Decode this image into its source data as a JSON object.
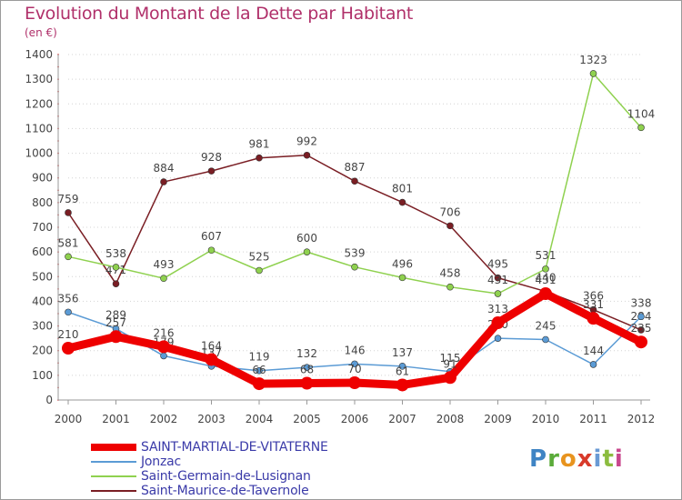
{
  "chart_data": {
    "type": "line",
    "title": "Evolution du Montant de la Dette par Habitant",
    "subtitle": "(en €)",
    "xlabel": "",
    "ylabel": "",
    "ylim": [
      0,
      1400
    ],
    "yticks": [
      0,
      100,
      200,
      300,
      400,
      500,
      600,
      700,
      800,
      900,
      1000,
      1100,
      1200,
      1300,
      1400
    ],
    "categories": [
      "2000",
      "2001",
      "2002",
      "2003",
      "2004",
      "2005",
      "2006",
      "2007",
      "2008",
      "2009",
      "2010",
      "2011",
      "2012"
    ],
    "grid": "horizontal",
    "legend_position": "bottom-left",
    "series": [
      {
        "name": "SAINT-MARTIAL-DE-VITATERNE",
        "color": "#ee0000",
        "bold": true,
        "values": [
          210,
          257,
          216,
          164,
          66,
          68,
          70,
          61,
          91,
          313,
          431,
          331,
          235
        ]
      },
      {
        "name": "Jonzac",
        "color": "#5b9bd5",
        "values": [
          356,
          289,
          179,
          137,
          119,
          132,
          146,
          137,
          115,
          250,
          245,
          144,
          338
        ]
      },
      {
        "name": "Saint-Germain-de-Lusignan",
        "color": "#8fd14f",
        "values": [
          581,
          538,
          493,
          607,
          525,
          600,
          539,
          496,
          458,
          431,
          531,
          1323,
          1104
        ]
      },
      {
        "name": "Saint-Maurice-de-Tavernole",
        "color": "#7a1e24",
        "values": [
          759,
          471,
          884,
          928,
          981,
          992,
          887,
          801,
          706,
          495,
          440,
          366,
          284
        ]
      }
    ]
  },
  "logo": {
    "text": "Proxiti",
    "letters": [
      "P",
      "r",
      "o",
      "x",
      "i",
      "t",
      "i"
    ]
  }
}
